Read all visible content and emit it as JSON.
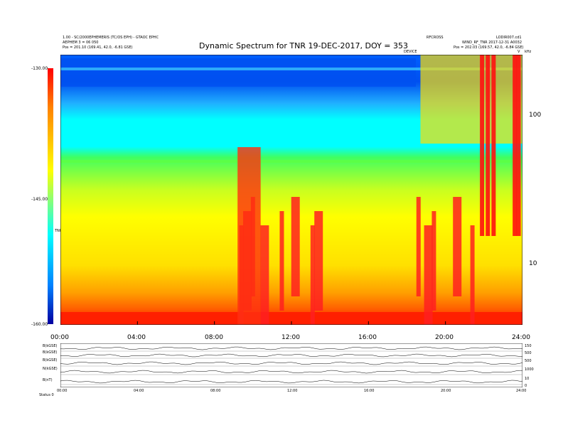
{
  "header": {
    "title": "Dynamic Spectrum for TNR 19-DEC-2017, DOY = 353",
    "left_lines": [
      "1.00 - SC/2000EPHEMERIS (TC/OS EPH) - GTAOC EPHC",
      "AEPHEM 3 = 06 050",
      "Pos = 201.10 (169.41, 42.0, -6.81 GSE)"
    ],
    "mid_label": "DEVICE",
    "right_lines": [
      "RFCROSS",
      "LODIR007.cd1",
      "WIND_RF_TNR 2017-12-31 A0032",
      "Pos = 202.03 (169.57, 42.0, -6.84 GSE)"
    ],
    "freq_unit": "kHz",
    "corner_mark": "V"
  },
  "colorbar": {
    "label": "TNR",
    "ticks": [
      {
        "label": "-130.00",
        "value": -130
      },
      {
        "label": "-145.00",
        "value": -145
      },
      {
        "label": "-160.00",
        "value": -160
      }
    ],
    "range": [
      -160,
      -130
    ],
    "colors": [
      "#0000a0",
      "#0080ff",
      "#00ffff",
      "#ffff00",
      "#ff8000",
      "#ff0000"
    ]
  },
  "chart_data": {
    "type": "heatmap",
    "title": "Dynamic Spectrum for TNR 19-DEC-2017, DOY = 353",
    "x_tick_labels": [
      "00:00",
      "04:00",
      "08:00",
      "12:00",
      "16:00",
      "20:00",
      "24:00"
    ],
    "x_tick_hours": [
      0,
      4,
      8,
      12,
      16,
      20,
      24
    ],
    "xlim_hours": [
      0,
      24
    ],
    "y_scale": "log",
    "ylim_khz": [
      4,
      240
    ],
    "y_ticks": [
      {
        "label": "100",
        "value": 100
      },
      {
        "label": "10",
        "value": 10
      }
    ],
    "bursts_hours": [
      9.4,
      9.6,
      10.0,
      10.5,
      11.5,
      12.1,
      13.1,
      13.3,
      18.6,
      19.0,
      19.4,
      20.5,
      21.4
    ],
    "type3_hours": [
      21.9,
      22.2,
      22.5,
      23.6,
      23.8
    ]
  },
  "panels": {
    "rows": [
      {
        "label": "B(kGSE)",
        "scale": "150"
      },
      {
        "label": "B(kGSE)",
        "scale": "500"
      },
      {
        "label": "B(kGSE)",
        "scale": "500"
      },
      {
        "label": "N(kGSE)",
        "scale": "1000"
      },
      {
        "label": "B(nT)",
        "scale": "10"
      },
      {
        "label": "",
        "scale": "0"
      }
    ],
    "time_labels": [
      "00:00",
      "04:00",
      "08:00",
      "12:00",
      "16:00",
      "20:00",
      "24:00"
    ],
    "footer": "Status 0"
  }
}
